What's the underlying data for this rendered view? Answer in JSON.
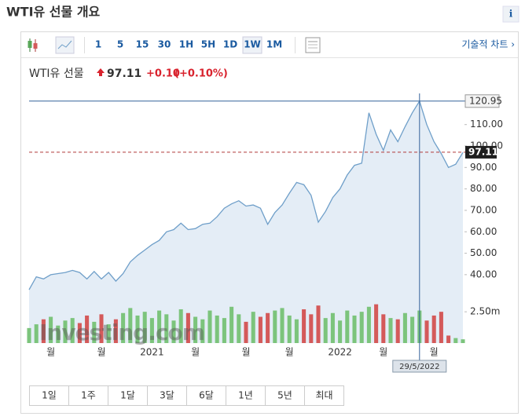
{
  "header": {
    "title": "WTI유 선물 개요",
    "info": "i"
  },
  "toolbar": {
    "intervals": [
      "1",
      "5",
      "15",
      "30",
      "1H",
      "5H",
      "1D",
      "1W",
      "1M"
    ],
    "selected": "1W",
    "technical_chart": "기술적 차트 ›"
  },
  "quote": {
    "name": "WTI유 선물",
    "price": 97.11,
    "change": "+0.10",
    "change_pct": "(+0.10%)"
  },
  "ranges": [
    "1일",
    "1주",
    "1달",
    "3달",
    "6달",
    "1년",
    "5년",
    "최대"
  ],
  "chart_data": {
    "type": "line",
    "watermark": "Investing.com",
    "categories": [
      null,
      null,
      null,
      "월",
      null,
      null,
      null,
      null,
      null,
      null,
      "월",
      null,
      null,
      null,
      null,
      null,
      null,
      "2021",
      null,
      null,
      null,
      null,
      null,
      "월",
      null,
      null,
      null,
      null,
      null,
      null,
      "월",
      null,
      null,
      null,
      null,
      null,
      "월",
      null,
      null,
      null,
      null,
      null,
      null,
      "2022",
      null,
      null,
      null,
      null,
      null,
      "월",
      null,
      null,
      null,
      null,
      null,
      null,
      "월",
      null,
      null,
      null,
      null
    ],
    "series": [
      {
        "name": "WTI유 선물",
        "color": "#6f9fc9",
        "fill": "#e4edf6",
        "values": [
          33,
          39,
          38,
          40,
          40.5,
          41,
          42,
          41,
          38,
          41.5,
          38,
          41,
          37,
          40.5,
          46,
          49,
          51.5,
          54,
          56,
          60,
          61,
          64,
          61,
          61.5,
          63.5,
          64,
          67,
          71,
          73,
          74.5,
          72,
          72.5,
          71,
          63.5,
          69,
          72.5,
          78,
          83,
          82,
          77,
          64.5,
          69.5,
          76,
          80,
          86.5,
          91,
          92,
          115.5,
          105.5,
          98,
          107.5,
          102,
          109,
          115.5,
          120.95,
          110,
          102,
          96.5,
          90,
          91.5,
          97
        ]
      }
    ],
    "ylim": [
      7,
      126
    ],
    "yticks": [
      {
        "value": 40,
        "label": "40.00"
      },
      {
        "value": 50,
        "label": "50.00"
      },
      {
        "value": 60,
        "label": "60.00"
      },
      {
        "value": 70,
        "label": "70.00"
      },
      {
        "value": 80,
        "label": "80.00"
      },
      {
        "value": 90,
        "label": "90.00"
      },
      {
        "value": 100,
        "label": "100.00"
      },
      {
        "value": 110,
        "label": "110.00"
      }
    ],
    "last_value": 97.11,
    "last_color": "#b03a3a",
    "crosshair": {
      "value": 120.95,
      "date": "29/5/2022",
      "color": "#34629a"
    },
    "volume": {
      "up_color": "#7cc47c",
      "down_color": "#d45a5a",
      "ylim": [
        0,
        3.2
      ],
      "yticks": [
        {
          "value": 2.5,
          "label": "2.50m"
        }
      ],
      "values": [
        1.2,
        1.5,
        1.9,
        2.1,
        1.4,
        1.8,
        2.0,
        1.6,
        2.2,
        1.7,
        2.3,
        1.5,
        1.9,
        2.4,
        2.8,
        2.2,
        2.5,
        2.0,
        2.6,
        2.3,
        1.8,
        2.7,
        2.4,
        2.1,
        1.9,
        2.6,
        2.2,
        2.0,
        2.9,
        2.3,
        1.7,
        2.5,
        2.1,
        2.4,
        2.6,
        2.8,
        2.2,
        1.9,
        2.7,
        2.3,
        3.0,
        2.0,
        2.4,
        1.8,
        2.6,
        2.2,
        2.5,
        2.9,
        3.1,
        2.3,
        2.0,
        1.9,
        2.4,
        2.1,
        2.6,
        1.8,
        2.2,
        2.5,
        0.6,
        0.4,
        0.3
      ]
    }
  }
}
